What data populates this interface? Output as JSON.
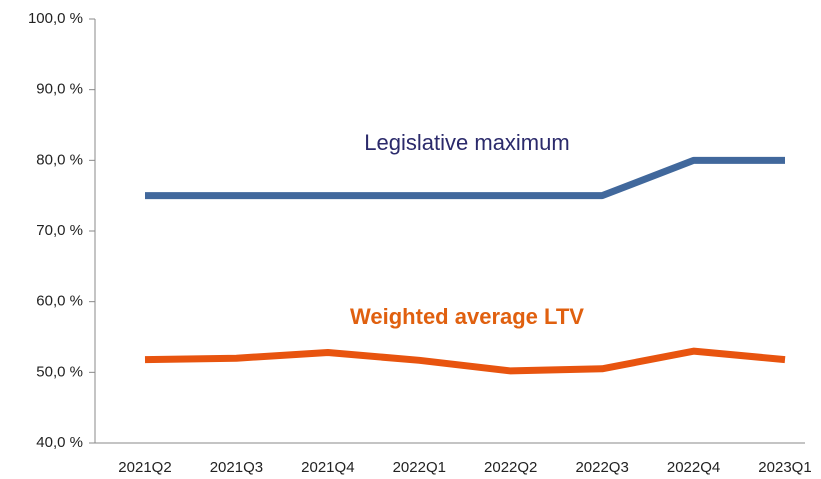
{
  "chart_data": {
    "type": "line",
    "categories": [
      "2021Q2",
      "2021Q3",
      "2021Q4",
      "2022Q1",
      "2022Q2",
      "2022Q3",
      "2022Q4",
      "2023Q1"
    ],
    "series": [
      {
        "name": "Legislative maximum",
        "color": "#41689c",
        "label_color": "#2b2a6b",
        "values": [
          75,
          75,
          75,
          75,
          75,
          75,
          80,
          80
        ]
      },
      {
        "name": "Weighted average LTV",
        "color": "#e8540f",
        "label_color": "#e0600f",
        "values": [
          51.8,
          52.0,
          52.8,
          51.7,
          50.2,
          50.5,
          53.0,
          51.8
        ]
      }
    ],
    "ylim": [
      40,
      100
    ],
    "yticks": [
      {
        "value": 40,
        "label": "40,0 %"
      },
      {
        "value": 50,
        "label": "50,0 %"
      },
      {
        "value": 60,
        "label": "60,0 %"
      },
      {
        "value": 70,
        "label": "70,0 %"
      },
      {
        "value": 80,
        "label": "80,0 %"
      },
      {
        "value": 90,
        "label": "90,0 %"
      },
      {
        "value": 100,
        "label": "100,0 %"
      }
    ]
  }
}
